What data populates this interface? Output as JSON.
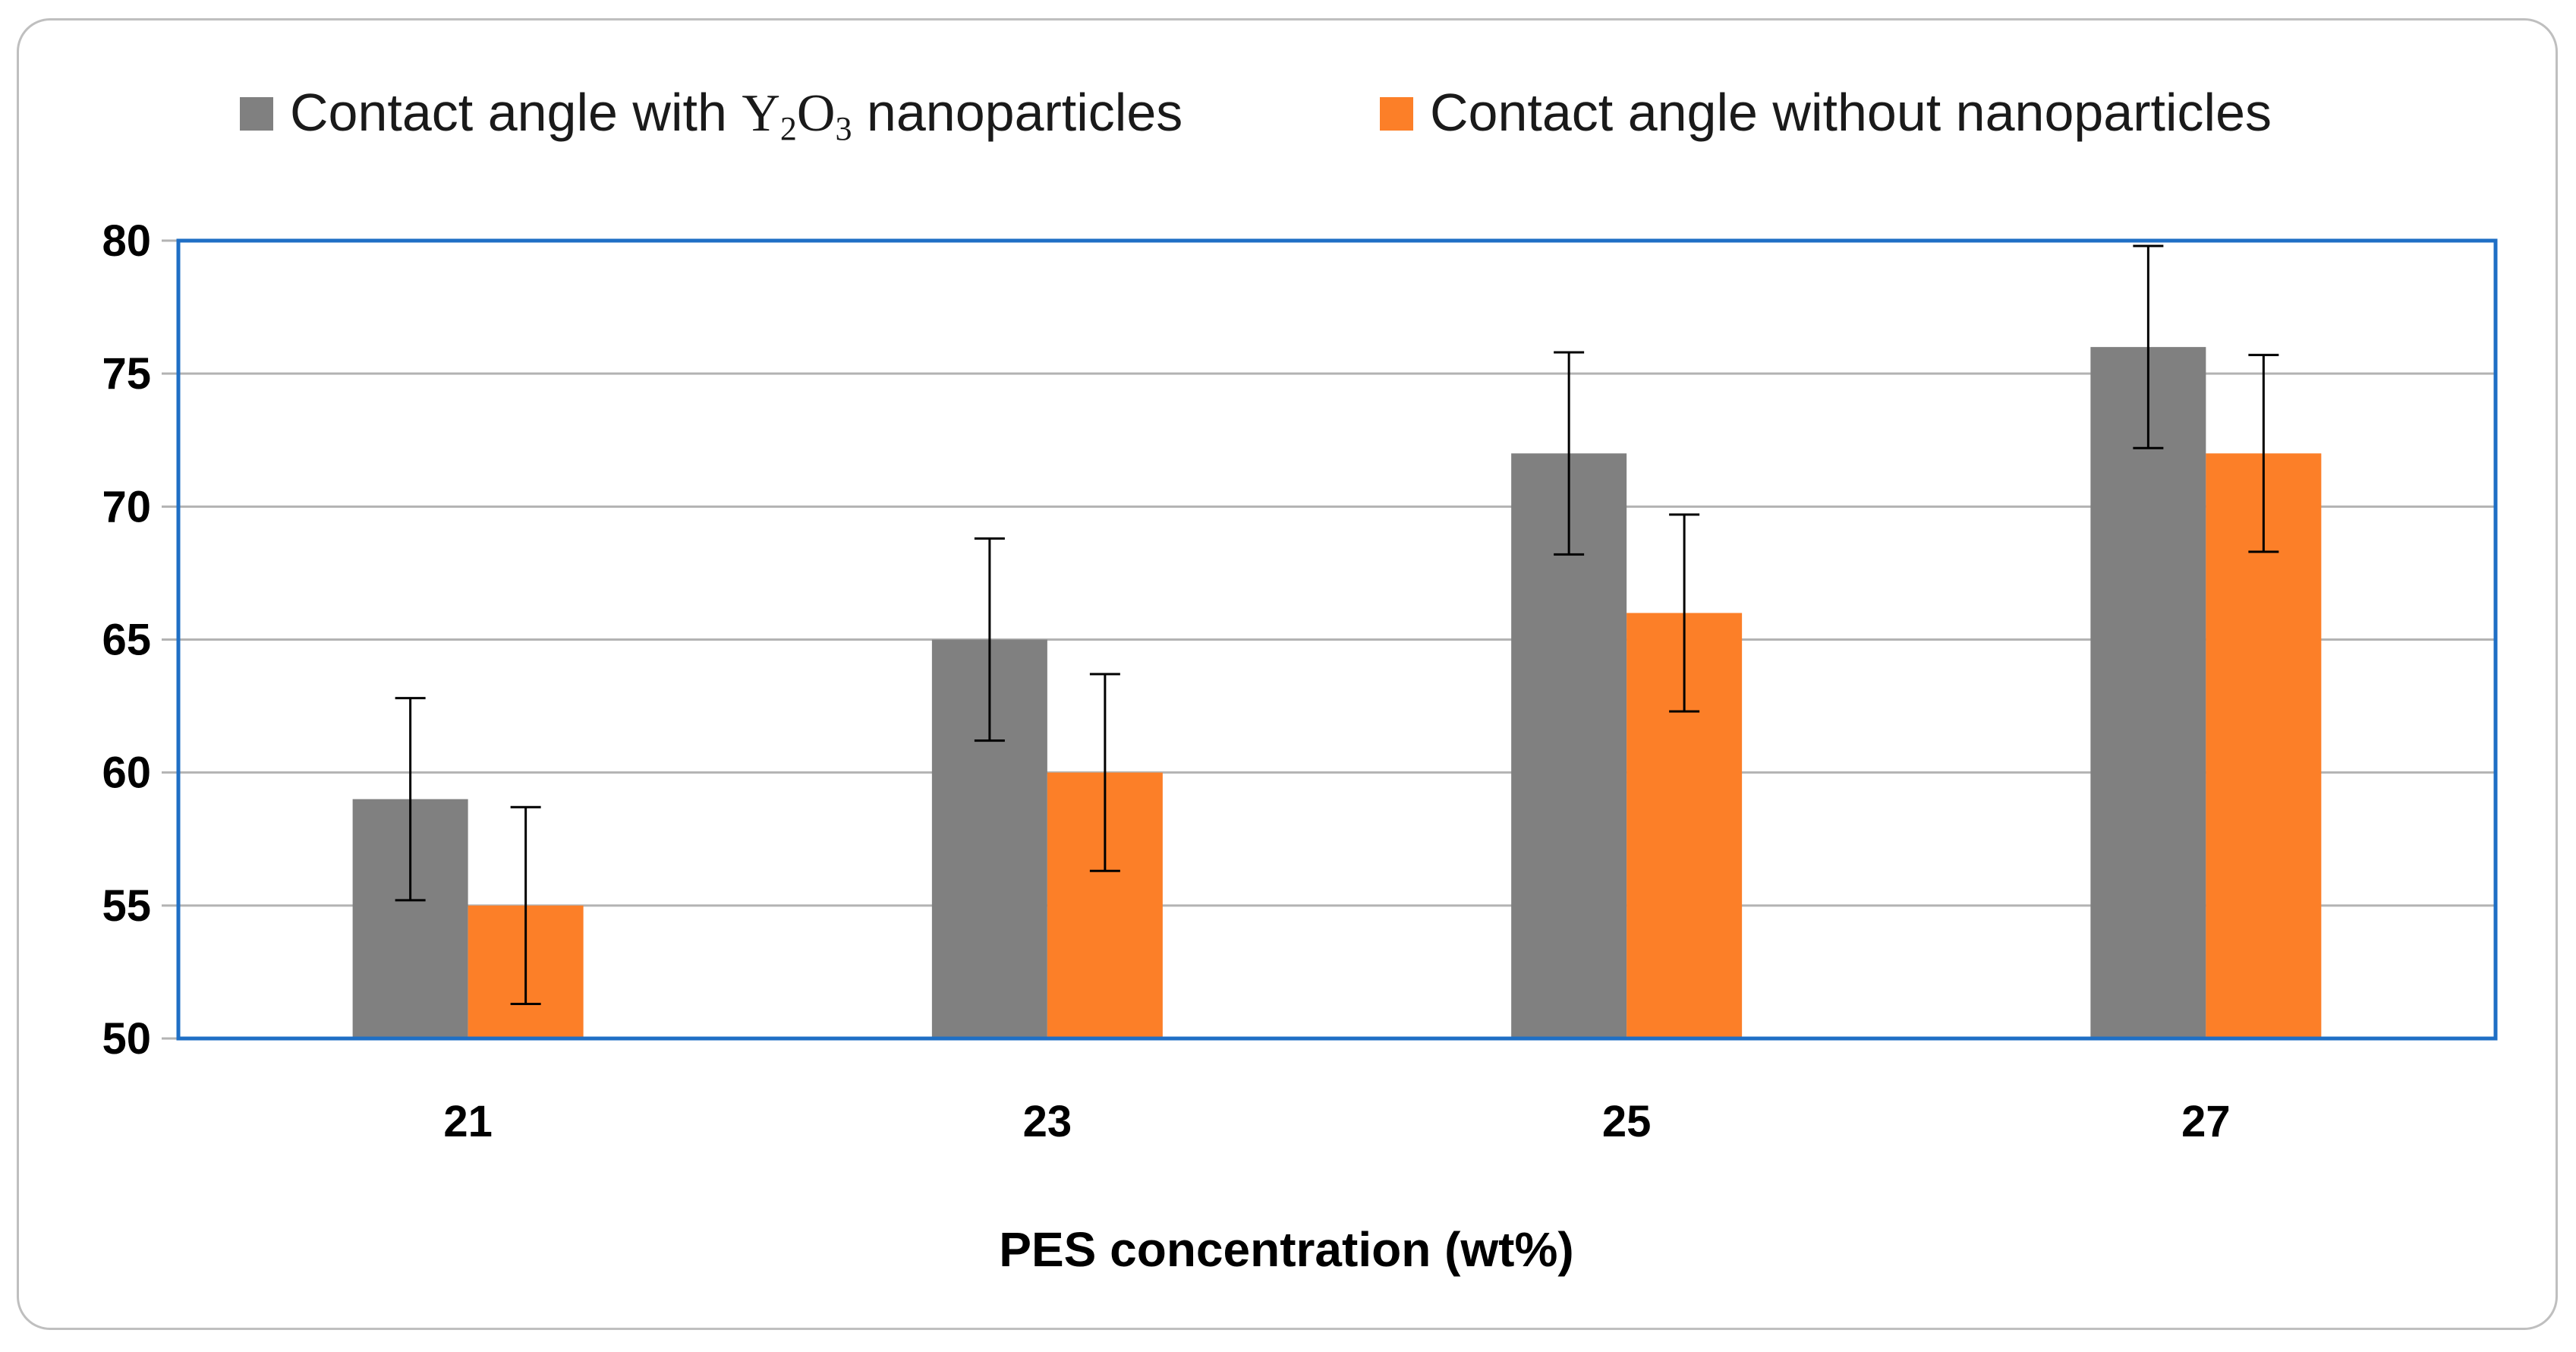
{
  "chart_data": {
    "type": "bar",
    "title": "",
    "xlabel": "PES concentration (wt%)",
    "ylabel": "",
    "categories": [
      "21",
      "23",
      "25",
      "27"
    ],
    "series": [
      {
        "name": "Contact angle with Y2O3 nanoparticles",
        "legend_prefix": "Contact angle with ",
        "legend_symbol": "Y",
        "legend_sub1": "2",
        "legend_mid": "O",
        "legend_sub2": "3",
        "legend_suffix": " nanoparticles",
        "color": "#808080",
        "values": [
          59,
          65,
          72,
          76
        ],
        "errors": [
          3.8,
          3.8,
          3.8,
          3.8
        ]
      },
      {
        "name": "Contact angle without nanoparticles",
        "color": "#fc7f28",
        "values": [
          55,
          60,
          66,
          72
        ],
        "errors": [
          3.7,
          3.7,
          3.7,
          3.7
        ]
      }
    ],
    "ylim": [
      50,
      80
    ],
    "yticks": [
      "50",
      "55",
      "60",
      "65",
      "70",
      "75",
      "80"
    ],
    "grid": true,
    "legend_position": "top",
    "plot_border_color": "#1f6fc5",
    "grid_color": "#b3b3b3"
  }
}
